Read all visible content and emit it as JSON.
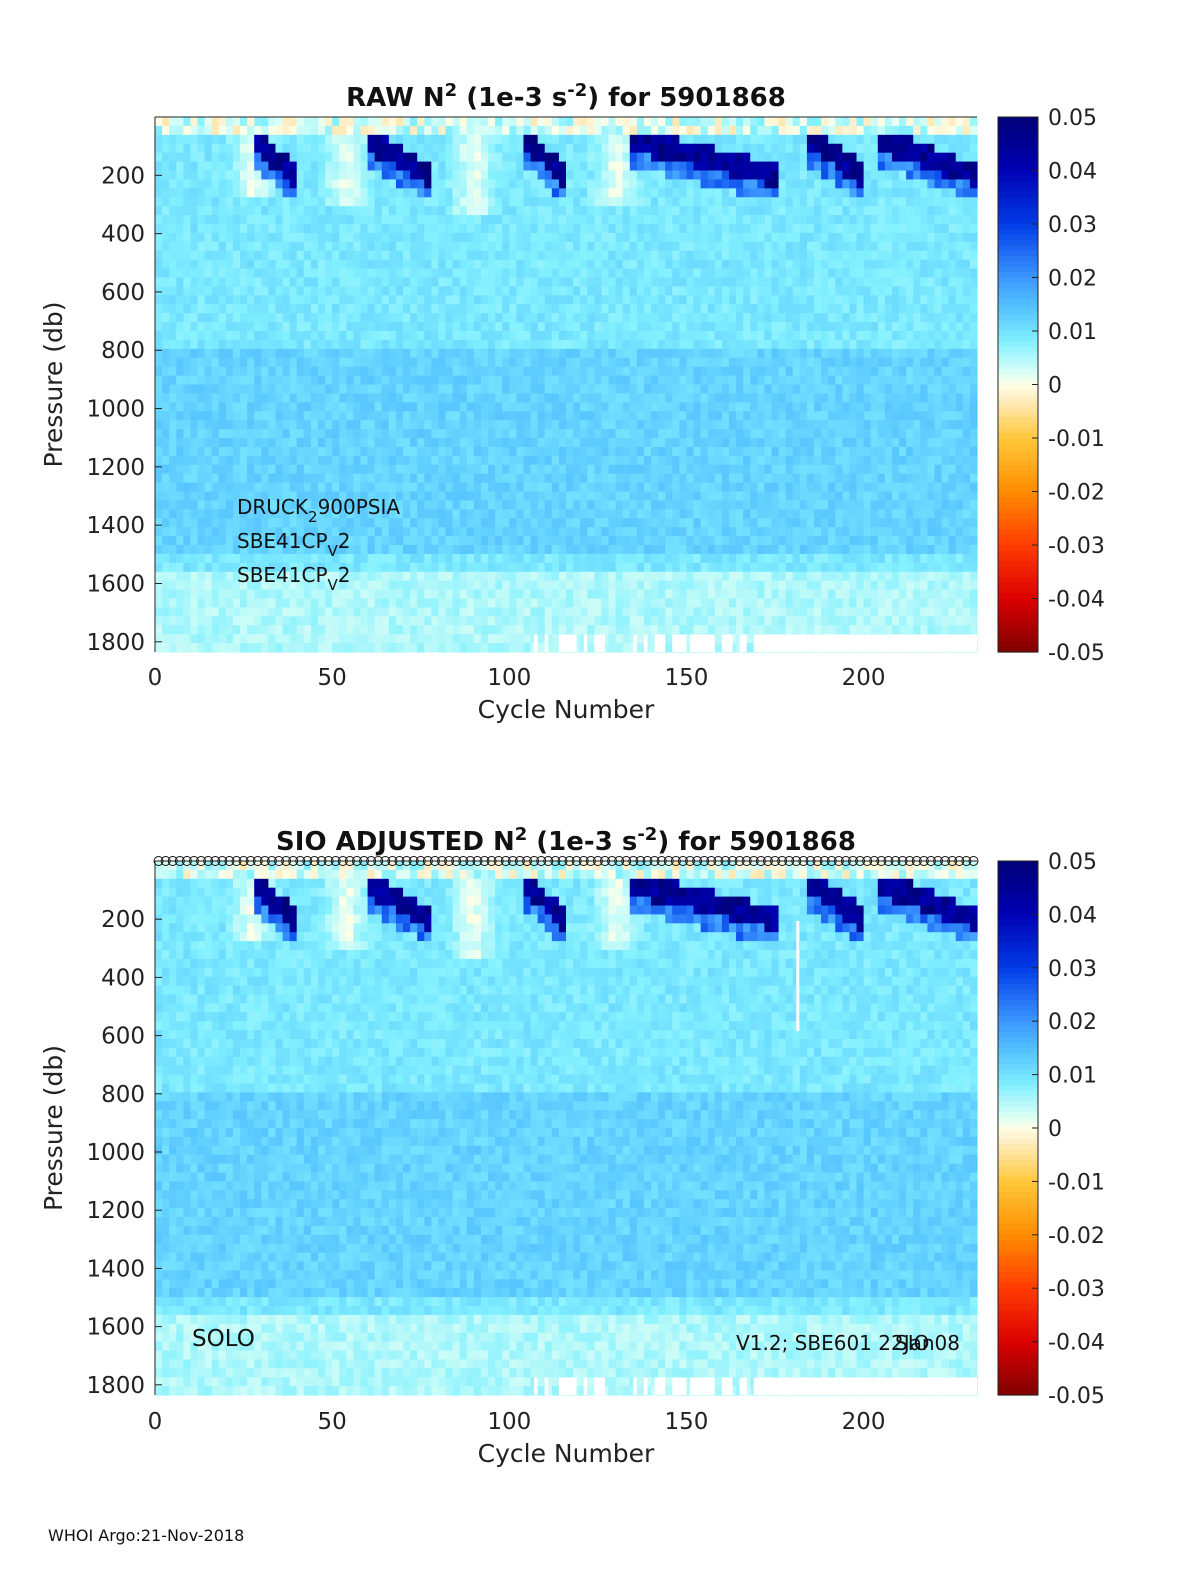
{
  "footer": "WHOI Argo:21-Nov-2018",
  "colorbar": {
    "ticks": [
      "0.05",
      "0.04",
      "0.03",
      "0.02",
      "0.01",
      "0",
      "-0.01",
      "-0.02",
      "-0.03",
      "-0.04",
      "-0.05"
    ],
    "range": [
      -0.05,
      0.05
    ]
  },
  "chart_data": [
    {
      "type": "heatmap",
      "title_parts": [
        "RAW N",
        "2",
        " (1e-3 s",
        "-2",
        ") for 5901868"
      ],
      "xlabel": "Cycle Number",
      "ylabel": "Pressure (db)",
      "xticks": [
        "0",
        "50",
        "100",
        "150",
        "200"
      ],
      "yticks": [
        "200",
        "400",
        "600",
        "800",
        "1000",
        "1200",
        "1400",
        "1600",
        "1800"
      ],
      "xlim": [
        0,
        232
      ],
      "ylim": [
        1835,
        0
      ],
      "sensors": [
        [
          "DRUCK",
          "2",
          "900PSIA"
        ],
        [
          "SBE41CP",
          "V",
          "2"
        ],
        [
          "SBE41CP",
          "V",
          "2"
        ]
      ]
    },
    {
      "type": "heatmap",
      "title_parts": [
        "SIO  ADJUSTED N",
        "2",
        " (1e-3 s",
        "-2",
        ") for 5901868"
      ],
      "xlabel": "Cycle Number",
      "ylabel": "Pressure (db)",
      "xticks": [
        "0",
        "50",
        "100",
        "150",
        "200"
      ],
      "yticks": [
        "200",
        "400",
        "600",
        "800",
        "1000",
        "1200",
        "1400",
        "1600",
        "1800"
      ],
      "xlim": [
        0,
        232
      ],
      "ylim": [
        1835,
        0
      ],
      "left_note": "SOLO",
      "right_note": "V1.2; SBE601 22Jan08",
      "right_note_overlay": "SIO"
    }
  ]
}
